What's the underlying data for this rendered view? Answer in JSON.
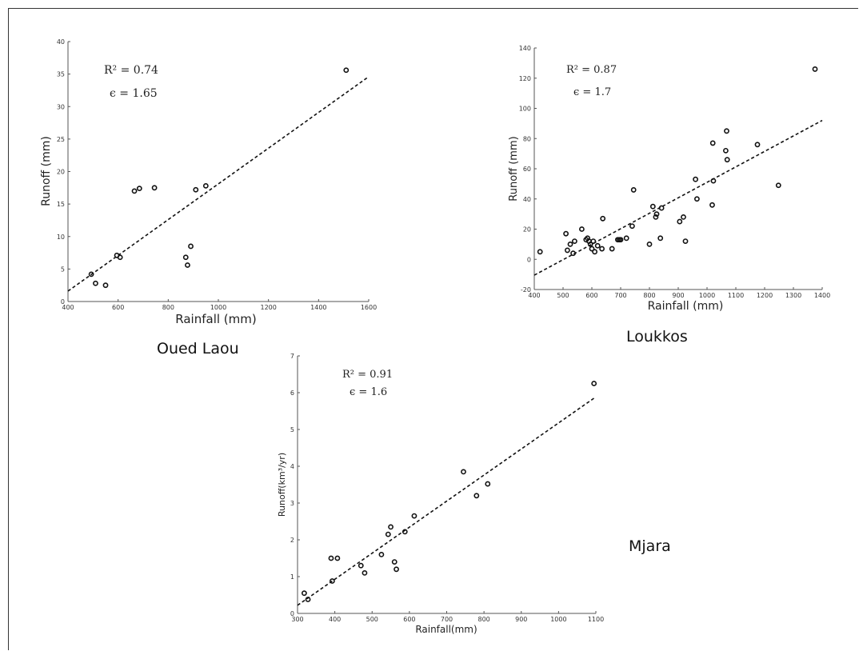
{
  "chart_data": [
    {
      "type": "scatter",
      "caption": "Oued Laou",
      "xlabel": "Rainfall (mm)",
      "ylabel": "Runoff (mm)",
      "xlim": [
        400,
        1600
      ],
      "ylim": [
        0,
        40
      ],
      "xticks": [
        400,
        600,
        800,
        1000,
        1200,
        1400,
        1600
      ],
      "yticks": [
        0,
        5,
        10,
        15,
        20,
        25,
        30,
        35,
        40
      ],
      "r2_text": "R² = 0.74",
      "eps_text": "ϵ = 1.65",
      "fit": [
        [
          400,
          1.6
        ],
        [
          1600,
          34.6
        ]
      ],
      "points": [
        [
          493,
          4.2
        ],
        [
          510,
          2.8
        ],
        [
          550,
          2.5
        ],
        [
          595,
          7.1
        ],
        [
          608,
          6.8
        ],
        [
          665,
          17.0
        ],
        [
          685,
          17.4
        ],
        [
          745,
          17.5
        ],
        [
          870,
          6.8
        ],
        [
          877,
          5.6
        ],
        [
          890,
          8.5
        ],
        [
          910,
          17.2
        ],
        [
          950,
          17.8
        ],
        [
          1510,
          35.6
        ]
      ]
    },
    {
      "type": "scatter",
      "caption": "Loukkos",
      "xlabel": "Rainfall (mm)",
      "ylabel": "Runoff (mm)",
      "xlim": [
        400,
        1400
      ],
      "ylim": [
        -20,
        140
      ],
      "xticks": [
        400,
        500,
        600,
        700,
        800,
        900,
        1000,
        1100,
        1200,
        1300,
        1400
      ],
      "yticks": [
        -20,
        0,
        20,
        40,
        60,
        80,
        100,
        120,
        140
      ],
      "r2_text": "R² = 0.87",
      "eps_text": "ϵ = 1.7",
      "fit": [
        [
          400,
          -10.5
        ],
        [
          1400,
          92
        ]
      ],
      "points": [
        [
          420,
          5
        ],
        [
          510,
          17
        ],
        [
          515,
          6
        ],
        [
          525,
          10
        ],
        [
          535,
          4
        ],
        [
          540,
          12
        ],
        [
          565,
          20
        ],
        [
          580,
          13
        ],
        [
          585,
          14
        ],
        [
          590,
          12
        ],
        [
          595,
          10
        ],
        [
          600,
          7
        ],
        [
          605,
          12
        ],
        [
          610,
          5
        ],
        [
          620,
          9
        ],
        [
          635,
          7
        ],
        [
          638,
          27
        ],
        [
          670,
          7
        ],
        [
          690,
          13
        ],
        [
          695,
          13
        ],
        [
          700,
          13
        ],
        [
          720,
          14
        ],
        [
          740,
          22
        ],
        [
          745,
          46
        ],
        [
          800,
          10
        ],
        [
          812,
          35
        ],
        [
          822,
          28
        ],
        [
          825,
          30
        ],
        [
          838,
          14
        ],
        [
          842,
          34
        ],
        [
          905,
          25
        ],
        [
          918,
          28
        ],
        [
          925,
          12
        ],
        [
          960,
          53
        ],
        [
          965,
          40
        ],
        [
          1018,
          36
        ],
        [
          1020,
          77
        ],
        [
          1022,
          52
        ],
        [
          1065,
          72
        ],
        [
          1068,
          85
        ],
        [
          1070,
          66
        ],
        [
          1175,
          76
        ],
        [
          1248,
          49
        ],
        [
          1375,
          126
        ]
      ]
    },
    {
      "type": "scatter",
      "caption": "Mjara",
      "xlabel": "Rainfall(mm)",
      "ylabel": "Runoff(km³/yr)",
      "xlim": [
        300,
        1100
      ],
      "ylim": [
        0,
        7
      ],
      "xticks": [
        300,
        400,
        500,
        600,
        700,
        800,
        900,
        1000,
        1100
      ],
      "yticks": [
        0,
        1,
        2,
        3,
        4,
        5,
        6,
        7
      ],
      "r2_text": "R² = 0.91",
      "eps_text": "ϵ = 1.6",
      "fit": [
        [
          300,
          0.22
        ],
        [
          1095,
          5.85
        ]
      ],
      "points": [
        [
          318,
          0.55
        ],
        [
          328,
          0.38
        ],
        [
          390,
          1.5
        ],
        [
          393,
          0.88
        ],
        [
          407,
          1.5
        ],
        [
          470,
          1.3
        ],
        [
          480,
          1.1
        ],
        [
          525,
          1.6
        ],
        [
          543,
          2.15
        ],
        [
          550,
          2.35
        ],
        [
          560,
          1.4
        ],
        [
          565,
          1.2
        ],
        [
          588,
          2.22
        ],
        [
          613,
          2.65
        ],
        [
          745,
          3.85
        ],
        [
          780,
          3.2
        ],
        [
          810,
          3.52
        ],
        [
          1095,
          6.25
        ]
      ]
    }
  ]
}
